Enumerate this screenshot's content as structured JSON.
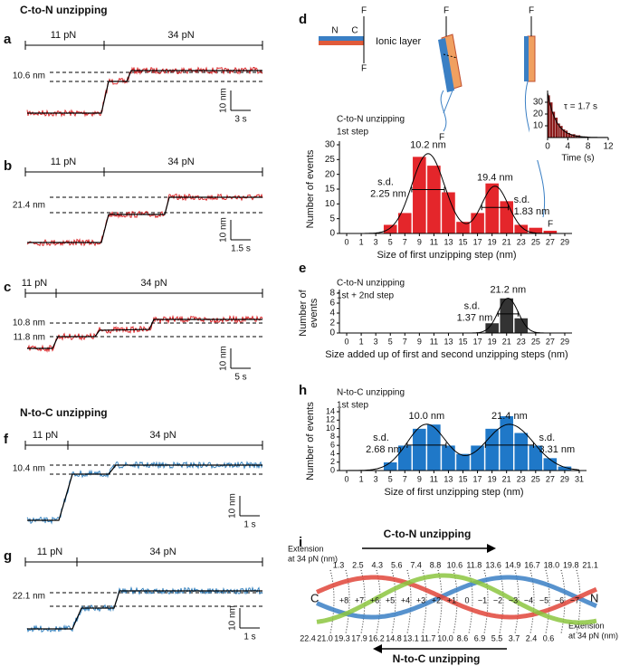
{
  "sections": [
    "C-to-N unzipping",
    "N-to-C unzipping"
  ],
  "traces": [
    {
      "panel": "a",
      "forces": [
        "11 pN",
        "34 pN"
      ],
      "steps": [
        "10.6 nm"
      ],
      "scale_y": "10 nm",
      "scale_x": "3 s",
      "color": "#d7191c"
    },
    {
      "panel": "b",
      "forces": [
        "11 pN",
        "34 pN"
      ],
      "steps": [
        "21.4 nm"
      ],
      "scale_y": "10 nm",
      "scale_x": "1.5 s",
      "color": "#d7191c"
    },
    {
      "panel": "c",
      "forces": [
        "11 pN",
        "34 pN"
      ],
      "steps": [
        "10.8 nm",
        "11.8 nm"
      ],
      "scale_y": "10 nm",
      "scale_x": "5 s",
      "color": "#d7191c"
    },
    {
      "panel": "f",
      "forces": [
        "11 pN",
        "34 pN"
      ],
      "steps": [
        "10.4 nm"
      ],
      "scale_y": "10 nm",
      "scale_x": "1 s",
      "color": "#2b7bba"
    },
    {
      "panel": "g",
      "forces": [
        "11 pN",
        "34 pN"
      ],
      "steps": [
        "22.1 nm"
      ],
      "scale_y": "10 nm",
      "scale_x": "1 s",
      "color": "#2b7bba"
    }
  ],
  "schematic": {
    "panel": "d",
    "force": "F",
    "n_end": "N",
    "c_end": "C",
    "layer": "Ionic layer"
  },
  "chart_data": [
    {
      "panel": "d",
      "type": "bar",
      "title": "C-to-N unzipping",
      "subtitle": "1st step",
      "xlabel": "Size of first unzipping step (nm)",
      "ylabel": "Number of events",
      "x": [
        5,
        7,
        9,
        11,
        13,
        15,
        17,
        19,
        21,
        23,
        25,
        27
      ],
      "values": [
        3,
        7,
        26,
        23,
        14,
        4,
        7,
        17,
        11,
        3,
        2,
        1
      ],
      "color": "#e4262b",
      "xlim": [
        0,
        29
      ],
      "xticks": [
        0,
        1,
        3,
        5,
        7,
        9,
        11,
        13,
        15,
        17,
        19,
        21,
        23,
        25,
        27,
        29
      ],
      "ylim": [
        0,
        30
      ],
      "yticks": [
        0,
        5,
        10,
        15,
        20,
        25,
        30
      ],
      "sd_prefix": "s.d.",
      "fits": [
        {
          "mean": {
            "value": 10.2,
            "label": "10.2 nm"
          },
          "sd": {
            "value": 2.25,
            "label": "2.25 nm"
          },
          "peak": 27
        },
        {
          "mean": {
            "value": 19.4,
            "label": "19.4 nm"
          },
          "sd": {
            "value": 1.83,
            "label": "1.83 nm"
          },
          "peak": 16
        }
      ]
    },
    {
      "type": "histogram",
      "xlabel": "Time (s)",
      "bins": [
        0,
        0.5,
        1,
        1.5,
        2,
        2.5,
        3,
        3.5,
        4,
        4.5,
        5,
        5.5,
        6,
        6.5,
        7,
        7.5,
        8
      ],
      "values": [
        36,
        30,
        22,
        17,
        12,
        10,
        7,
        6,
        4,
        3,
        3,
        2,
        2,
        1,
        1,
        1
      ],
      "color": "#8b1a1a",
      "xlim": [
        0,
        12
      ],
      "xticks": [
        0,
        4,
        8,
        12
      ],
      "ylim": [
        0,
        40
      ],
      "yticks": [
        10,
        20,
        30
      ],
      "fit": {
        "tau": {
          "value": 1.7,
          "label": "τ = 1.7 s"
        },
        "peak": 38
      }
    },
    {
      "panel": "e",
      "type": "bar",
      "title": "C-to-N unzipping",
      "subtitle": "1st + 2nd step",
      "xlabel": "Size added up of first and second unzipping steps (nm)",
      "ylabel": [
        "Number of",
        "events"
      ],
      "x": [
        19,
        21,
        23
      ],
      "values": [
        2,
        7,
        3
      ],
      "color": "#333333",
      "xlim": [
        0,
        29
      ],
      "xticks": [
        0,
        1,
        3,
        5,
        7,
        9,
        11,
        13,
        15,
        17,
        19,
        21,
        23,
        25,
        27,
        29
      ],
      "ylim": [
        0,
        8
      ],
      "yticks": [
        0,
        2,
        4,
        6,
        8
      ],
      "sd_prefix": "s.d.",
      "fits": [
        {
          "mean": {
            "value": 21.2,
            "label": "21.2 nm"
          },
          "sd": {
            "value": 1.37,
            "label": "1.37 nm"
          },
          "peak": 7
        }
      ]
    },
    {
      "panel": "h",
      "type": "bar",
      "title": "N-to-C unzipping",
      "subtitle": "1st step",
      "xlabel": "Size of first unzipping step (nm)",
      "ylabel": "Number of events",
      "x": [
        5,
        7,
        9,
        11,
        13,
        15,
        17,
        19,
        21,
        23,
        25,
        27,
        29
      ],
      "values": [
        2,
        6,
        10,
        11,
        6,
        4,
        6,
        10,
        13,
        9,
        6,
        3,
        1
      ],
      "color": "#1f78c8",
      "xlim": [
        0,
        31
      ],
      "xticks": [
        0,
        1,
        3,
        5,
        7,
        9,
        11,
        13,
        15,
        17,
        19,
        21,
        23,
        25,
        27,
        29,
        31
      ],
      "ylim": [
        0,
        14
      ],
      "yticks": [
        0,
        2,
        4,
        6,
        8,
        10,
        12,
        14
      ],
      "sd_prefix": "s.d.",
      "fits": [
        {
          "mean": {
            "value": 10,
            "label": "10.0 nm"
          },
          "sd": {
            "value": 2.68,
            "label": "2.68 nm"
          },
          "peak": 11
        },
        {
          "mean": {
            "value": 21.4,
            "label": "21.4 nm"
          },
          "sd": {
            "value": 3.31,
            "label": "3.31 nm"
          },
          "peak": 11
        }
      ]
    }
  ],
  "panel_i": {
    "panel": "i",
    "top_title": "C-to-N unzipping",
    "bottom_title": "N-to-C unzipping",
    "ext_label": [
      "Extension",
      "at 34 pN (nm)"
    ],
    "c_end": "C",
    "n_end": "N",
    "top": [
      "1.3",
      "2.5",
      "4.3",
      "5.6",
      "7.4",
      "8.8",
      "10.6",
      "11.8",
      "13.6",
      "14.9",
      "16.7",
      "18.0",
      "19.8",
      "21.1"
    ],
    "middle": [
      "+8",
      "+7",
      "+6",
      "+5",
      "+4",
      "+3",
      "+2",
      "+1",
      "0",
      "−1",
      "−2",
      "−3",
      "−4",
      "−5",
      "−6",
      "−7"
    ],
    "bottom": [
      "22.4",
      "21.0",
      "19.3",
      "17.9",
      "16.2",
      "14.8",
      "13.1",
      "11.7",
      "10.0",
      "8.6",
      "6.9",
      "5.5",
      "3.7",
      "2.4",
      "0.6"
    ],
    "highlight_color": "#d7191c",
    "top_highlight": [
      6,
      13
    ],
    "middle_highlight": [
      8
    ],
    "bottom_highlight": [
      0,
      8
    ]
  }
}
